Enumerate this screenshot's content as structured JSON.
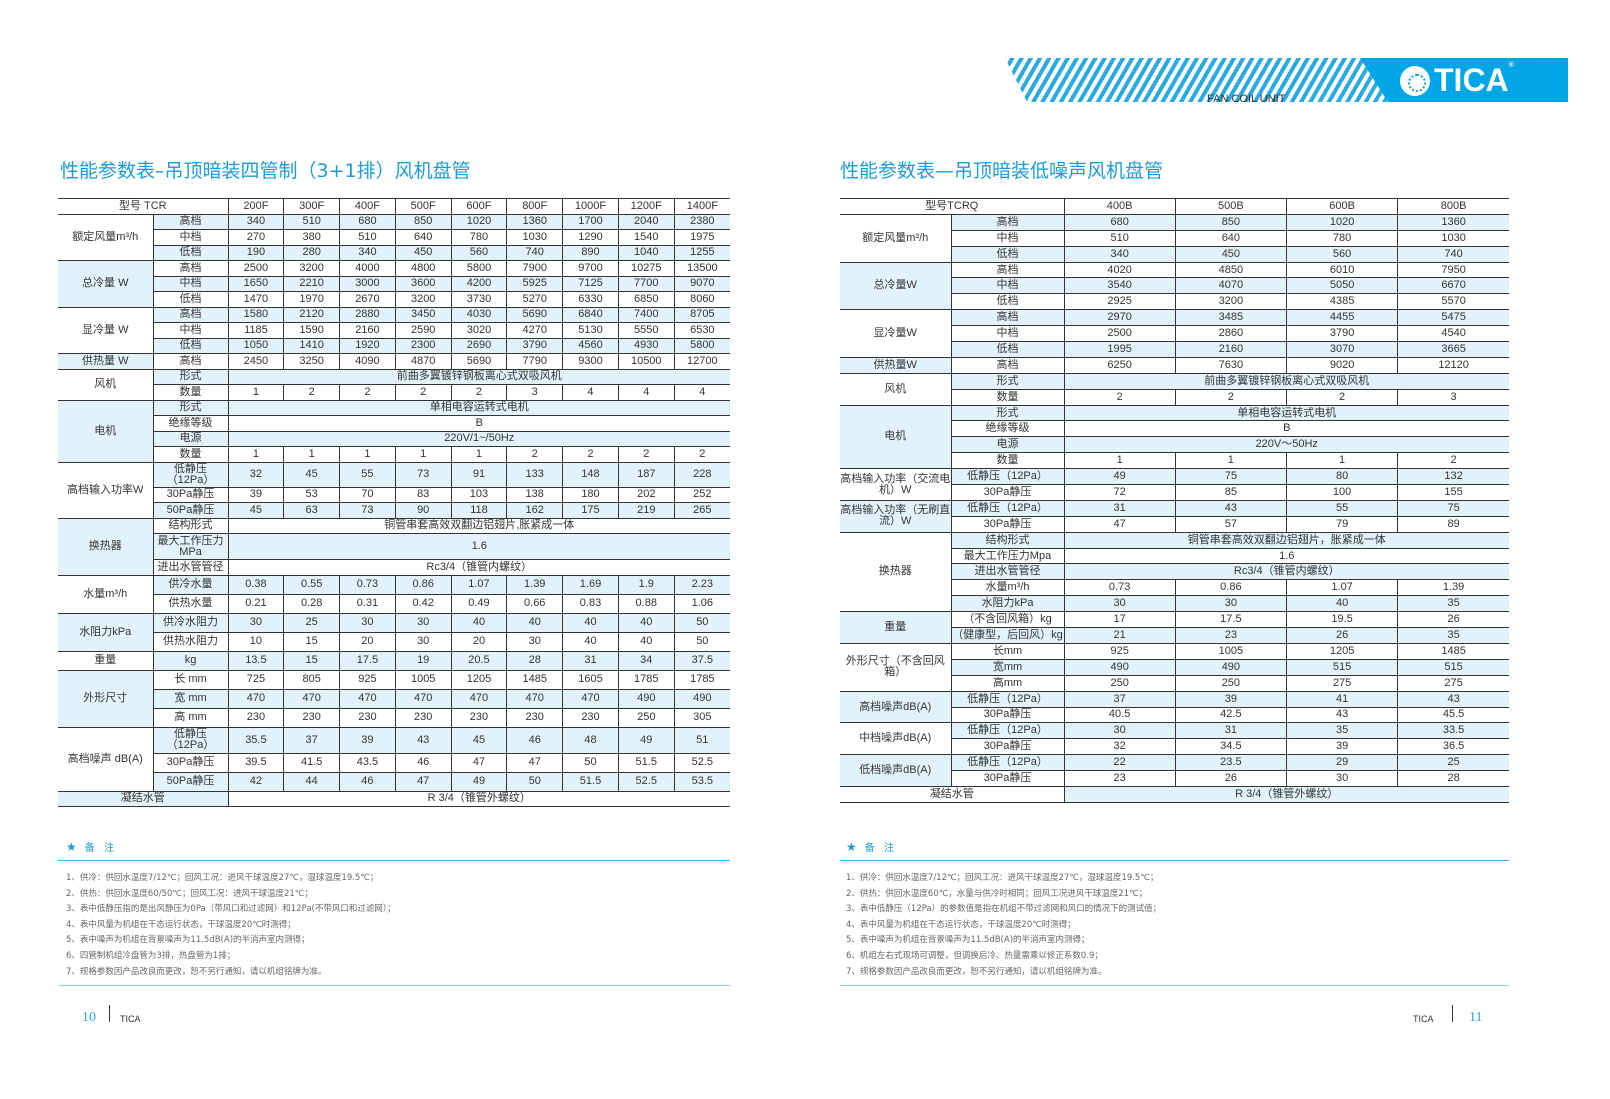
{
  "header": {
    "brand": "TICA",
    "subtitle": "FAN COIL UNIT",
    "accent": "#00a6e6"
  },
  "left": {
    "title": "性能参数表–吊顶暗装四管制（3+1排）风机盘管",
    "model_label": "型号 TCR",
    "models": [
      "200F",
      "300F",
      "400F",
      "500F",
      "600F",
      "800F",
      "1000F",
      "1200F",
      "1400F"
    ],
    "rows": [
      {
        "g": "额定风量m³/h",
        "gs": 3,
        "s": "高档",
        "v": [
          "340",
          "510",
          "680",
          "850",
          "1020",
          "1360",
          "1700",
          "2040",
          "2380"
        ]
      },
      {
        "s": "中档",
        "v": [
          "270",
          "380",
          "510",
          "640",
          "780",
          "1030",
          "1290",
          "1540",
          "1975"
        ]
      },
      {
        "s": "低档",
        "v": [
          "190",
          "280",
          "340",
          "450",
          "560",
          "740",
          "890",
          "1040",
          "1255"
        ]
      },
      {
        "g": "总冷量 W",
        "gs": 3,
        "s": "高档",
        "v": [
          "2500",
          "3200",
          "4000",
          "4800",
          "5800",
          "7900",
          "9700",
          "10275",
          "13500"
        ]
      },
      {
        "s": "中档",
        "v": [
          "1650",
          "2210",
          "3000",
          "3600",
          "4200",
          "5925",
          "7125",
          "7700",
          "9070"
        ]
      },
      {
        "s": "低档",
        "v": [
          "1470",
          "1970",
          "2670",
          "3200",
          "3730",
          "5270",
          "6330",
          "6850",
          "8060"
        ]
      },
      {
        "g": "显冷量 W",
        "gs": 3,
        "s": "高档",
        "v": [
          "1580",
          "2120",
          "2880",
          "3450",
          "4030",
          "5690",
          "6840",
          "7400",
          "8705"
        ]
      },
      {
        "s": "中档",
        "v": [
          "1185",
          "1590",
          "2160",
          "2590",
          "3020",
          "4270",
          "5130",
          "5550",
          "6530"
        ]
      },
      {
        "s": "低档",
        "v": [
          "1050",
          "1410",
          "1920",
          "2300",
          "2690",
          "3790",
          "4560",
          "4930",
          "5800"
        ]
      },
      {
        "g": "供热量 W",
        "gs": 1,
        "s": "高档",
        "v": [
          "2450",
          "3250",
          "4090",
          "4870",
          "5690",
          "7790",
          "9300",
          "10500",
          "12700"
        ]
      },
      {
        "g": "风机",
        "gs": 2,
        "s": "形式",
        "span": "前曲多翼镀锌钢板离心式双吸风机"
      },
      {
        "s": "数量",
        "v": [
          "1",
          "2",
          "2",
          "2",
          "2",
          "3",
          "4",
          "4",
          "4"
        ]
      },
      {
        "g": "电机",
        "gs": 4,
        "s": "形式",
        "span": "单相电容运转式电机"
      },
      {
        "s": "绝缘等级",
        "span": "B"
      },
      {
        "s": "电源",
        "span": "220V/1~/50Hz"
      },
      {
        "s": "数量",
        "v": [
          "1",
          "1",
          "1",
          "1",
          "1",
          "2",
          "2",
          "2",
          "2"
        ]
      },
      {
        "g": "高档输入功率W",
        "gs": 3,
        "s": "低静压（12Pa）",
        "h": 25,
        "v": [
          "32",
          "45",
          "55",
          "73",
          "91",
          "133",
          "148",
          "187",
          "228"
        ]
      },
      {
        "s": "30Pa静压",
        "v": [
          "39",
          "53",
          "70",
          "83",
          "103",
          "138",
          "180",
          "202",
          "252"
        ]
      },
      {
        "s": "50Pa静压",
        "v": [
          "45",
          "63",
          "73",
          "90",
          "118",
          "162",
          "175",
          "219",
          "265"
        ]
      },
      {
        "g": "换热器",
        "gs": 3,
        "s": "结构形式",
        "span": "铜管串套高效双翻边铝翅片,胀紧成一体"
      },
      {
        "s": "最大工作压力MPa",
        "h": 26,
        "span": "1.6"
      },
      {
        "s": "进出水管管径",
        "span": "Rc3/4（锥管内螺纹）"
      },
      {
        "g": "水量m³/h",
        "gs": 2,
        "s": "供冷水量",
        "h": 19,
        "v": [
          "0.38",
          "0.55",
          "0.73",
          "0.86",
          "1.07",
          "1.39",
          "1.69",
          "1.9",
          "2.23"
        ]
      },
      {
        "s": "供热水量",
        "h": 19,
        "v": [
          "0.21",
          "0.28",
          "0.31",
          "0.42",
          "0.49",
          "0.66",
          "0.83",
          "0.88",
          "1.06"
        ]
      },
      {
        "g": "水阻力kPa",
        "gs": 2,
        "s": "供冷水阻力",
        "h": 19,
        "v": [
          "30",
          "25",
          "30",
          "30",
          "40",
          "40",
          "40",
          "40",
          "50"
        ]
      },
      {
        "s": "供热水阻力",
        "h": 19,
        "v": [
          "10",
          "15",
          "20",
          "30",
          "20",
          "30",
          "40",
          "40",
          "50"
        ]
      },
      {
        "g": "重量",
        "gs": 1,
        "s": "kg",
        "h": 19,
        "v": [
          "13.5",
          "15",
          "17.5",
          "19",
          "20.5",
          "28",
          "31",
          "34",
          "37.5"
        ]
      },
      {
        "g": "外形尺寸",
        "gs": 3,
        "s": "长 mm",
        "h": 19,
        "v": [
          "725",
          "805",
          "925",
          "1005",
          "1205",
          "1485",
          "1605",
          "1785",
          "1785"
        ]
      },
      {
        "s": "宽 mm",
        "h": 19,
        "v": [
          "470",
          "470",
          "470",
          "470",
          "470",
          "470",
          "470",
          "490",
          "490"
        ]
      },
      {
        "s": "高 mm",
        "h": 19,
        "v": [
          "230",
          "230",
          "230",
          "230",
          "230",
          "230",
          "230",
          "250",
          "305"
        ]
      },
      {
        "g": "高档噪声 dB(A)",
        "gs": 3,
        "s": "低静压（12Pa）",
        "h": 26,
        "v": [
          "35.5",
          "37",
          "39",
          "43",
          "45",
          "46",
          "48",
          "49",
          "51"
        ]
      },
      {
        "s": "30Pa静压",
        "h": 19,
        "v": [
          "39.5",
          "41.5",
          "43.5",
          "46",
          "47",
          "47",
          "50",
          "51.5",
          "52.5"
        ]
      },
      {
        "s": "50Pa静压",
        "h": 19,
        "v": [
          "42",
          "44",
          "46",
          "47",
          "49",
          "50",
          "51.5",
          "52.5",
          "53.5"
        ]
      },
      {
        "g": "凝结水管",
        "gs": 1,
        "full": true,
        "span": "R 3/4（锥管外螺纹）"
      }
    ],
    "notes_title": "备 注",
    "notes": [
      "1、供冷：供回水温度7/12℃；回风工况：进风干球温度27℃，湿球温度19.5℃；",
      "2、供热：供回水温度60/50℃；回风工况：进风干球温度21℃；",
      "3、表中低静压指的是出风静压为0Pa（带风口和过滤网）和12Pa(不带风口和过滤网）；",
      "4、表中风量为机组在干态运行状态，干球温度20℃时测得；",
      "5、表中噪声为机组在背景噪声为11.5dB(A)的半消声室内测得；",
      "6、四管制机组冷盘管为3排，热盘管为1排；",
      "7、规格参数因产品改良而更改，恕不另行通知，请以机组铭牌为准。"
    ],
    "page_number": "10",
    "brand": "TICA"
  },
  "right": {
    "title": "性能参数表—吊顶暗装低噪声风机盘管",
    "model_label": "型号TCRQ",
    "models": [
      "400B",
      "500B",
      "600B",
      "800B"
    ],
    "rows": [
      {
        "g": "额定风量m³/h",
        "gs": 3,
        "s": "高档",
        "v": [
          "680",
          "850",
          "1020",
          "1360"
        ]
      },
      {
        "s": "中档",
        "v": [
          "510",
          "640",
          "780",
          "1030"
        ]
      },
      {
        "s": "低档",
        "v": [
          "340",
          "450",
          "560",
          "740"
        ]
      },
      {
        "g": "总冷量W",
        "gs": 3,
        "s": "高档",
        "v": [
          "4020",
          "4850",
          "6010",
          "7950"
        ]
      },
      {
        "s": "中档",
        "v": [
          "3540",
          "4070",
          "5050",
          "6670"
        ]
      },
      {
        "s": "低档",
        "v": [
          "2925",
          "3200",
          "4385",
          "5570"
        ]
      },
      {
        "g": "显冷量W",
        "gs": 3,
        "s": "高档",
        "v": [
          "2970",
          "3485",
          "4455",
          "5475"
        ]
      },
      {
        "s": "中档",
        "v": [
          "2500",
          "2860",
          "3790",
          "4540"
        ]
      },
      {
        "s": "低档",
        "v": [
          "1995",
          "2160",
          "3070",
          "3665"
        ]
      },
      {
        "g": "供热量W",
        "gs": 1,
        "s": "高档",
        "v": [
          "6250",
          "7630",
          "9020",
          "12120"
        ]
      },
      {
        "g": "风机",
        "gs": 2,
        "s": "形式",
        "span": "前曲多翼镀锌钢板离心式双吸风机"
      },
      {
        "s": "数量",
        "v": [
          "2",
          "2",
          "2",
          "3"
        ]
      },
      {
        "g": "电机",
        "gs": 4,
        "s": "形式",
        "span": "单相电容运转式电机"
      },
      {
        "s": "绝缘等级",
        "span": "B"
      },
      {
        "s": "电源",
        "span": "220V～50Hz"
      },
      {
        "s": "数量",
        "v": [
          "1",
          "1",
          "1",
          "2"
        ]
      },
      {
        "g": "高档输入功率（交流电机）W",
        "gs": 2,
        "s": "低静压（12Pa）",
        "v": [
          "49",
          "75",
          "80",
          "132"
        ]
      },
      {
        "s": "30Pa静压",
        "v": [
          "72",
          "85",
          "100",
          "155"
        ]
      },
      {
        "g": "高档输入功率（无刷直流）W",
        "gs": 2,
        "s": "低静压（12Pa）",
        "v": [
          "31",
          "43",
          "55",
          "75"
        ]
      },
      {
        "s": "30Pa静压",
        "v": [
          "47",
          "57",
          "79",
          "89"
        ]
      },
      {
        "g": "换热器",
        "gs": 5,
        "s": "结构形式",
        "span": "铜管串套高效双翻边铝翅片，胀紧成一体"
      },
      {
        "s": "最大工作压力Mpa",
        "span": "1.6"
      },
      {
        "s": "进出水管管径",
        "span": "Rc3/4（锥管内螺纹）"
      },
      {
        "s": "水量m³/h",
        "v": [
          "0.73",
          "0.86",
          "1.07",
          "1.39"
        ]
      },
      {
        "s": "水阻力kPa",
        "v": [
          "30",
          "30",
          "40",
          "35"
        ]
      },
      {
        "g": "重量",
        "gs": 2,
        "s": "（不含回风箱）kg",
        "v": [
          "17",
          "17.5",
          "19.5",
          "26"
        ]
      },
      {
        "s": "（健康型，后回风）kg",
        "v": [
          "21",
          "23",
          "26",
          "35"
        ]
      },
      {
        "g": "外形尺寸（不含回风箱）",
        "gs": 3,
        "s": "长mm",
        "v": [
          "925",
          "1005",
          "1205",
          "1485"
        ]
      },
      {
        "s": "宽mm",
        "v": [
          "490",
          "490",
          "515",
          "515"
        ]
      },
      {
        "s": "高mm",
        "v": [
          "250",
          "250",
          "275",
          "275"
        ]
      },
      {
        "g": "高档噪声dB(A)",
        "gs": 2,
        "s": "低静压（12Pa）",
        "v": [
          "37",
          "39",
          "41",
          "43"
        ]
      },
      {
        "s": "30Pa静压",
        "v": [
          "40.5",
          "42.5",
          "43",
          "45.5"
        ]
      },
      {
        "g": "中档噪声dB(A)",
        "gs": 2,
        "s": "低静压（12Pa）",
        "v": [
          "30",
          "31",
          "35",
          "33.5"
        ]
      },
      {
        "s": "30Pa静压",
        "v": [
          "32",
          "34.5",
          "39",
          "36.5"
        ]
      },
      {
        "g": "低档噪声dB(A)",
        "gs": 2,
        "s": "低静压（12Pa）",
        "v": [
          "22",
          "23.5",
          "29",
          "25"
        ]
      },
      {
        "s": "30Pa静压",
        "v": [
          "23",
          "26",
          "30",
          "28"
        ]
      },
      {
        "g": "凝结水管",
        "gs": 1,
        "full": true,
        "span": "R 3/4（锥管外螺纹）"
      }
    ],
    "notes_title": "备 注",
    "notes": [
      "1、供冷：供回水温度7/12℃；回风工况：进风干球温度27℃，湿球温度19.5℃；",
      "2、供热：供回水温度60℃，水量与供冷时相同；回风工况进风干球温度21℃；",
      "3、表中低静压（12Pa）的参数值是指在机组不带过滤网和风口的情况下的测试值；",
      "4、表中风量为机组在干态运行状态，干球温度20℃时测得；",
      "5、表中噪声为机组在背景噪声为11.5dB(A)的半消声室内测得；",
      "6、机组左右式现场可调整，但调换后冷、热量需乘以修正系数0.9；",
      "7、规格参数因产品改良而更改，恕不另行通知，请以机组铭牌为准。"
    ],
    "page_number": "11",
    "brand": "TICA"
  }
}
